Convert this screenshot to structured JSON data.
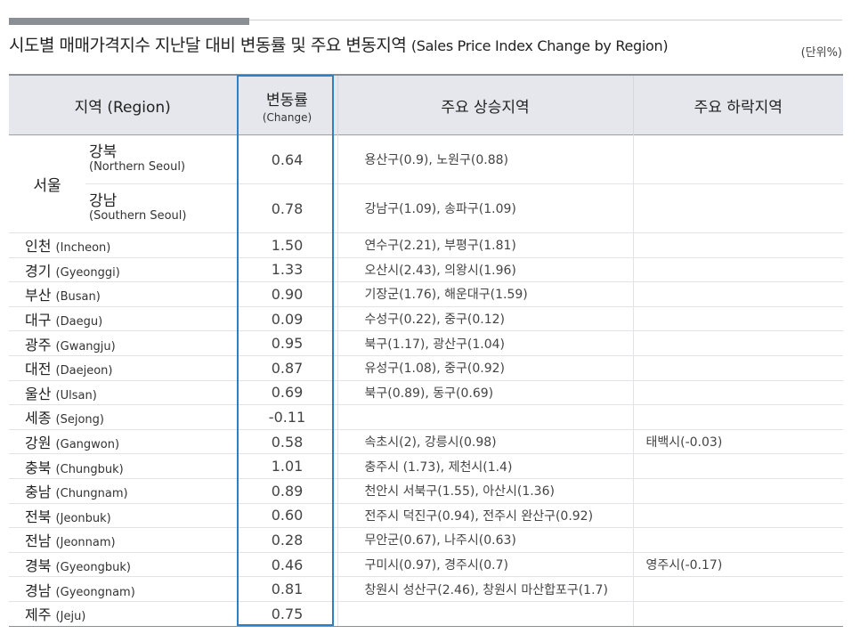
{
  "title_ko": "시도별 매매가격지수 지난달 대비 변동률 및 주요 변동지역",
  "title_en": "(Sales Price Index Change by Region)",
  "unit": "(단위%)",
  "headers": {
    "region": "지역 (Region)",
    "change_ko": "변동률",
    "change_en": "(Change)",
    "rising": "주요 상승지역",
    "falling": "주요 하락지역"
  },
  "seoul": {
    "label": "서울",
    "rows": [
      {
        "ko": "강북",
        "en": "(Northern Seoul)",
        "change": "0.64",
        "rising": "용산구(0.9),  노원구(0.88)",
        "falling": ""
      },
      {
        "ko": "강남",
        "en": "(Southern Seoul)",
        "change": "0.78",
        "rising": "강남구(1.09),  송파구(1.09)",
        "falling": ""
      }
    ]
  },
  "rows": [
    {
      "ko": "인천",
      "en": "(Incheon)",
      "change": "1.50",
      "rising": "연수구(2.21), 부평구(1.81)",
      "falling": ""
    },
    {
      "ko": "경기",
      "en": "(Gyeonggi)",
      "change": "1.33",
      "rising": "오산시(2.43), 의왕시(1.96)",
      "falling": ""
    },
    {
      "ko": "부산",
      "en": "(Busan)",
      "change": "0.90",
      "rising": "기장군(1.76), 해운대구(1.59)",
      "falling": ""
    },
    {
      "ko": "대구",
      "en": "(Daegu)",
      "change": "0.09",
      "rising": "수성구(0.22), 중구(0.12)",
      "falling": ""
    },
    {
      "ko": "광주",
      "en": "(Gwangju)",
      "change": "0.95",
      "rising": "북구(1.17), 광산구(1.04)",
      "falling": ""
    },
    {
      "ko": "대전",
      "en": "(Daejeon)",
      "change": "0.87",
      "rising": "유성구(1.08), 중구(0.92)",
      "falling": ""
    },
    {
      "ko": "울산",
      "en": "(Ulsan)",
      "change": "0.69",
      "rising": "북구(0.89), 동구(0.69)",
      "falling": ""
    },
    {
      "ko": "세종",
      "en": "(Sejong)",
      "change": "-0.11",
      "rising": "",
      "falling": ""
    },
    {
      "ko": "강원",
      "en": "(Gangwon)",
      "change": "0.58",
      "rising": "속초시(2), 강릉시(0.98)",
      "falling": "태백시(-0.03)"
    },
    {
      "ko": "충북",
      "en": "(Chungbuk)",
      "change": "1.01",
      "rising": "충주시 (1.73), 제천시(1.4)",
      "falling": ""
    },
    {
      "ko": "충남",
      "en": "(Chungnam)",
      "change": "0.89",
      "rising": "천안시 서북구(1.55), 아산시(1.36)",
      "falling": ""
    },
    {
      "ko": "전북",
      "en": "(Jeonbuk)",
      "change": "0.60",
      "rising": "전주시 덕진구(0.94), 전주시 완산구(0.92)",
      "falling": ""
    },
    {
      "ko": "전남",
      "en": "(Jeonnam)",
      "change": "0.28",
      "rising": "무안군(0.67),  나주시(0.63)",
      "falling": ""
    },
    {
      "ko": "경북",
      "en": "(Gyeongbuk)",
      "change": "0.46",
      "rising": "구미시(0.97), 경주시(0.7)",
      "falling": " 영주시(-0.17)"
    },
    {
      "ko": "경남",
      "en": "(Gyeongnam)",
      "change": "0.81",
      "rising": "창원시 성산구(2.46), 창원시 마산합포구(1.7)",
      "falling": ""
    },
    {
      "ko": "제주",
      "en": "(Jeju)",
      "change": "0.75",
      "rising": "",
      "falling": ""
    }
  ],
  "colors": {
    "header_bg": "#e5e7ec",
    "highlight_border": "#2f7fc4",
    "accent_bar": "#8a8f96"
  }
}
